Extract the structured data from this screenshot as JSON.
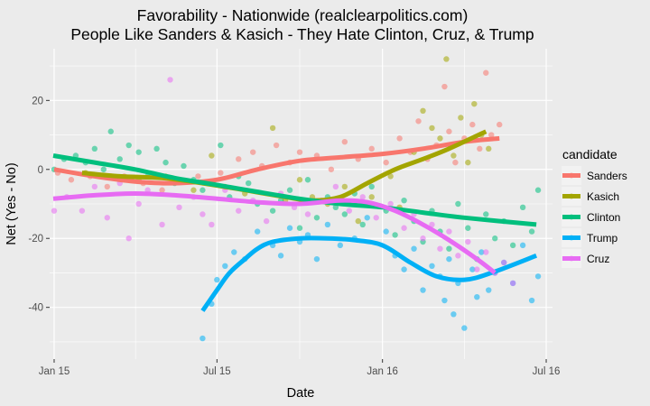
{
  "chart_data": {
    "type": "scatter",
    "title": "Favorability - Nationwide (realclearpolitics.com)",
    "subtitle": "People Like Sanders & Kasich - They Hate Clinton, Cruz, & Trump",
    "xlabel": "Date",
    "ylabel": "Net (Yes - No)",
    "x_ticks": [
      "Jan 15",
      "Jul 15",
      "Jan 16",
      "Jul 16"
    ],
    "x_tick_dates": [
      "2015-01-01",
      "2015-07-01",
      "2016-01-01",
      "2016-07-01"
    ],
    "y_ticks": [
      20,
      0,
      -20,
      -40
    ],
    "xlim": [
      "2014-12-27",
      "2016-07-08"
    ],
    "ylim": [
      -55,
      35
    ],
    "grid": true,
    "legend": {
      "title": "candidate",
      "position": "right"
    },
    "series": [
      {
        "name": "Sanders",
        "color": "#f8766d",
        "smooth": [
          [
            "2015-01-01",
            0
          ],
          [
            "2015-02-15",
            -2
          ],
          [
            "2015-04-01",
            -3.5
          ],
          [
            "2015-05-15",
            -4
          ],
          [
            "2015-07-01",
            -3
          ],
          [
            "2015-08-15",
            0
          ],
          [
            "2015-10-01",
            2.5
          ],
          [
            "2015-11-15",
            3.5
          ],
          [
            "2016-01-01",
            4.5
          ],
          [
            "2016-02-15",
            6
          ],
          [
            "2016-04-01",
            8
          ],
          [
            "2016-05-10",
            9
          ]
        ],
        "points": [
          [
            "2015-01-05",
            -1
          ],
          [
            "2015-01-20",
            -3
          ],
          [
            "2015-02-10",
            -2
          ],
          [
            "2015-03-01",
            -5
          ],
          [
            "2015-03-20",
            -2
          ],
          [
            "2015-04-10",
            -4
          ],
          [
            "2015-05-01",
            -6
          ],
          [
            "2015-05-20",
            -3
          ],
          [
            "2015-06-10",
            -2
          ],
          [
            "2015-07-05",
            -1
          ],
          [
            "2015-07-25",
            3
          ],
          [
            "2015-08-10",
            5
          ],
          [
            "2015-08-20",
            1
          ],
          [
            "2015-09-05",
            7
          ],
          [
            "2015-09-20",
            2
          ],
          [
            "2015-10-01",
            5
          ],
          [
            "2015-10-20",
            4
          ],
          [
            "2015-11-05",
            0
          ],
          [
            "2015-11-20",
            8
          ],
          [
            "2015-12-05",
            3
          ],
          [
            "2015-12-20",
            6
          ],
          [
            "2016-01-05",
            2
          ],
          [
            "2016-01-20",
            9
          ],
          [
            "2016-02-01",
            5
          ],
          [
            "2016-02-10",
            14
          ],
          [
            "2016-02-20",
            3
          ],
          [
            "2016-03-01",
            7
          ],
          [
            "2016-03-10",
            24
          ],
          [
            "2016-03-15",
            11
          ],
          [
            "2016-03-22",
            2
          ],
          [
            "2016-04-01",
            9
          ],
          [
            "2016-04-10",
            13
          ],
          [
            "2016-04-18",
            6
          ],
          [
            "2016-04-25",
            28
          ],
          [
            "2016-05-01",
            10
          ],
          [
            "2016-05-10",
            13
          ]
        ]
      },
      {
        "name": "Kasich",
        "color": "#a3a500",
        "smooth": [
          [
            "2015-02-01",
            -1
          ],
          [
            "2015-03-15",
            -2
          ],
          [
            "2015-05-01",
            -2.5
          ],
          [
            "2015-06-15",
            -4
          ],
          [
            "2015-08-01",
            -6
          ],
          [
            "2015-09-15",
            -8
          ],
          [
            "2015-10-15",
            -9
          ],
          [
            "2015-11-15",
            -8
          ],
          [
            "2015-12-15",
            -4
          ],
          [
            "2016-01-15",
            0
          ],
          [
            "2016-02-15",
            3
          ],
          [
            "2016-03-15",
            6
          ],
          [
            "2016-04-25",
            11
          ]
        ],
        "points": [
          [
            "2015-02-05",
            -1
          ],
          [
            "2015-03-05",
            -2
          ],
          [
            "2015-04-05",
            -3
          ],
          [
            "2015-05-05",
            -2
          ],
          [
            "2015-06-05",
            -6
          ],
          [
            "2015-06-25",
            4
          ],
          [
            "2015-07-10",
            -5
          ],
          [
            "2015-08-01",
            -7
          ],
          [
            "2015-09-01",
            12
          ],
          [
            "2015-09-15",
            -9
          ],
          [
            "2015-10-01",
            -3
          ],
          [
            "2015-10-15",
            -8
          ],
          [
            "2015-11-01",
            -10
          ],
          [
            "2015-11-20",
            -5
          ],
          [
            "2015-12-05",
            -15
          ],
          [
            "2015-12-20",
            -8
          ],
          [
            "2016-01-10",
            -2
          ],
          [
            "2016-01-20",
            -11
          ],
          [
            "2016-02-05",
            5
          ],
          [
            "2016-02-15",
            17
          ],
          [
            "2016-02-25",
            12
          ],
          [
            "2016-03-05",
            9
          ],
          [
            "2016-03-12",
            32
          ],
          [
            "2016-03-20",
            4
          ],
          [
            "2016-03-28",
            15
          ],
          [
            "2016-04-05",
            2
          ],
          [
            "2016-04-12",
            19
          ],
          [
            "2016-04-20",
            10
          ],
          [
            "2016-04-28",
            6
          ]
        ]
      },
      {
        "name": "Clinton",
        "color": "#00bf7d",
        "smooth": [
          [
            "2014-12-31",
            4
          ],
          [
            "2015-02-15",
            2
          ],
          [
            "2015-04-01",
            0
          ],
          [
            "2015-05-15",
            -2.5
          ],
          [
            "2015-07-01",
            -4.5
          ],
          [
            "2015-08-15",
            -6.5
          ],
          [
            "2015-10-01",
            -8.5
          ],
          [
            "2015-11-15",
            -10
          ],
          [
            "2016-01-01",
            -11
          ],
          [
            "2016-02-15",
            -12.5
          ],
          [
            "2016-04-01",
            -14
          ],
          [
            "2016-06-20",
            -16
          ]
        ],
        "points": [
          [
            "2015-01-01",
            0
          ],
          [
            "2015-01-12",
            3
          ],
          [
            "2015-01-25",
            4
          ],
          [
            "2015-02-05",
            2
          ],
          [
            "2015-02-15",
            6
          ],
          [
            "2015-02-25",
            0
          ],
          [
            "2015-03-05",
            11
          ],
          [
            "2015-03-15",
            3
          ],
          [
            "2015-03-25",
            7
          ],
          [
            "2015-04-05",
            5
          ],
          [
            "2015-04-15",
            -2
          ],
          [
            "2015-04-25",
            6
          ],
          [
            "2015-05-05",
            2
          ],
          [
            "2015-05-15",
            -4
          ],
          [
            "2015-05-25",
            1
          ],
          [
            "2015-06-05",
            -3
          ],
          [
            "2015-06-15",
            -6
          ],
          [
            "2015-07-05",
            7
          ],
          [
            "2015-07-15",
            -8
          ],
          [
            "2015-07-25",
            -2
          ],
          [
            "2015-08-05",
            -4
          ],
          [
            "2015-08-15",
            -10
          ],
          [
            "2015-09-01",
            -12
          ],
          [
            "2015-09-10",
            -9
          ],
          [
            "2015-09-20",
            -6
          ],
          [
            "2015-10-01",
            -17
          ],
          [
            "2015-10-10",
            -3
          ],
          [
            "2015-10-20",
            -14
          ],
          [
            "2015-11-01",
            -8
          ],
          [
            "2015-11-10",
            -11
          ],
          [
            "2015-11-20",
            -13
          ],
          [
            "2015-12-01",
            -7
          ],
          [
            "2015-12-10",
            -16
          ],
          [
            "2015-12-20",
            -5
          ],
          [
            "2016-01-05",
            -12
          ],
          [
            "2016-01-15",
            -19
          ],
          [
            "2016-01-25",
            -9
          ],
          [
            "2016-02-05",
            -15
          ],
          [
            "2016-02-15",
            -21
          ],
          [
            "2016-02-25",
            -12
          ],
          [
            "2016-03-05",
            -18
          ],
          [
            "2016-03-15",
            -23
          ],
          [
            "2016-03-25",
            -10
          ],
          [
            "2016-04-05",
            -17
          ],
          [
            "2016-04-15",
            -26
          ],
          [
            "2016-04-25",
            -13
          ],
          [
            "2016-05-05",
            -20
          ],
          [
            "2016-05-15",
            -15
          ],
          [
            "2016-05-25",
            -22
          ],
          [
            "2016-06-05",
            -11
          ],
          [
            "2016-06-15",
            -18
          ],
          [
            "2016-06-22",
            -6
          ]
        ]
      },
      {
        "name": "Trump",
        "color": "#00b0f6",
        "smooth": [
          [
            "2015-06-15",
            -41
          ],
          [
            "2015-07-01",
            -35
          ],
          [
            "2015-07-15",
            -30
          ],
          [
            "2015-08-01",
            -26
          ],
          [
            "2015-08-15",
            -23
          ],
          [
            "2015-09-01",
            -21
          ],
          [
            "2015-10-01",
            -20
          ],
          [
            "2015-11-01",
            -20
          ],
          [
            "2015-12-01",
            -20.5
          ],
          [
            "2016-01-01",
            -22
          ],
          [
            "2016-02-01",
            -27
          ],
          [
            "2016-03-01",
            -31
          ],
          [
            "2016-04-01",
            -32
          ],
          [
            "2016-05-01",
            -30
          ],
          [
            "2016-06-20",
            -25
          ]
        ],
        "points": [
          [
            "2015-06-15",
            -49
          ],
          [
            "2015-06-25",
            -39
          ],
          [
            "2015-07-01",
            -32
          ],
          [
            "2015-07-10",
            -28
          ],
          [
            "2015-07-20",
            -24
          ],
          [
            "2015-08-01",
            -26
          ],
          [
            "2015-08-15",
            -18
          ],
          [
            "2015-09-01",
            -22
          ],
          [
            "2015-09-10",
            -25
          ],
          [
            "2015-09-20",
            -17
          ],
          [
            "2015-10-01",
            -21
          ],
          [
            "2015-10-10",
            -19
          ],
          [
            "2015-10-20",
            -26
          ],
          [
            "2015-11-01",
            -16
          ],
          [
            "2015-11-15",
            -22
          ],
          [
            "2015-12-01",
            -20
          ],
          [
            "2015-12-15",
            -14
          ],
          [
            "2016-01-05",
            -18
          ],
          [
            "2016-01-15",
            -25
          ],
          [
            "2016-01-25",
            -29
          ],
          [
            "2016-02-05",
            -23
          ],
          [
            "2016-02-15",
            -35
          ],
          [
            "2016-02-25",
            -28
          ],
          [
            "2016-03-05",
            -31
          ],
          [
            "2016-03-10",
            -38
          ],
          [
            "2016-03-15",
            -26
          ],
          [
            "2016-03-20",
            -42
          ],
          [
            "2016-03-25",
            -33
          ],
          [
            "2016-04-01",
            -46
          ],
          [
            "2016-04-10",
            -29
          ],
          [
            "2016-04-15",
            -37
          ],
          [
            "2016-04-20",
            -24
          ],
          [
            "2016-04-28",
            -35
          ],
          [
            "2016-05-05",
            -30
          ],
          [
            "2016-05-15",
            -27
          ],
          [
            "2016-05-25",
            -33
          ],
          [
            "2016-06-05",
            -22
          ],
          [
            "2016-06-15",
            -38
          ],
          [
            "2016-06-22",
            -31
          ]
        ]
      },
      {
        "name": "Cruz",
        "color": "#e76bf3",
        "smooth": [
          [
            "2014-12-31",
            -8.5
          ],
          [
            "2015-02-15",
            -7.5
          ],
          [
            "2015-04-01",
            -7
          ],
          [
            "2015-05-15",
            -7.5
          ],
          [
            "2015-07-01",
            -8.5
          ],
          [
            "2015-08-15",
            -9.5
          ],
          [
            "2015-10-01",
            -10
          ],
          [
            "2015-11-15",
            -9
          ],
          [
            "2015-12-15",
            -9.5
          ],
          [
            "2016-01-15",
            -12
          ],
          [
            "2016-02-15",
            -16
          ],
          [
            "2016-03-15",
            -20.5
          ],
          [
            "2016-04-15",
            -26
          ],
          [
            "2016-05-05",
            -30
          ]
        ],
        "points": [
          [
            "2015-01-01",
            -12
          ],
          [
            "2015-01-15",
            -8
          ],
          [
            "2015-02-01",
            -12
          ],
          [
            "2015-02-15",
            -5
          ],
          [
            "2015-03-01",
            -14
          ],
          [
            "2015-03-15",
            -4
          ],
          [
            "2015-03-25",
            -20
          ],
          [
            "2015-04-05",
            -10
          ],
          [
            "2015-04-15",
            -6
          ],
          [
            "2015-05-01",
            -16
          ],
          [
            "2015-05-10",
            26
          ],
          [
            "2015-05-20",
            -11
          ],
          [
            "2015-06-05",
            -8
          ],
          [
            "2015-06-15",
            -13
          ],
          [
            "2015-06-25",
            -16
          ],
          [
            "2015-07-10",
            -6
          ],
          [
            "2015-07-25",
            -12
          ],
          [
            "2015-08-10",
            -9
          ],
          [
            "2015-08-25",
            -15
          ],
          [
            "2015-09-10",
            -7
          ],
          [
            "2015-09-25",
            -11
          ],
          [
            "2015-10-10",
            -13
          ],
          [
            "2015-10-25",
            -9
          ],
          [
            "2015-11-10",
            -5
          ],
          [
            "2015-11-25",
            -12
          ],
          [
            "2015-12-10",
            -8
          ],
          [
            "2015-12-25",
            -14
          ],
          [
            "2016-01-10",
            -10
          ],
          [
            "2016-01-25",
            -17
          ],
          [
            "2016-02-05",
            -13
          ],
          [
            "2016-02-15",
            -20
          ],
          [
            "2016-02-25",
            -16
          ],
          [
            "2016-03-05",
            -23
          ],
          [
            "2016-03-15",
            -18
          ],
          [
            "2016-03-25",
            -25
          ],
          [
            "2016-04-05",
            -21
          ],
          [
            "2016-04-15",
            -29
          ],
          [
            "2016-04-25",
            -24
          ],
          [
            "2016-05-05",
            -30
          ],
          [
            "2016-05-15",
            -27
          ],
          [
            "2016-05-25",
            -33
          ]
        ]
      }
    ]
  }
}
